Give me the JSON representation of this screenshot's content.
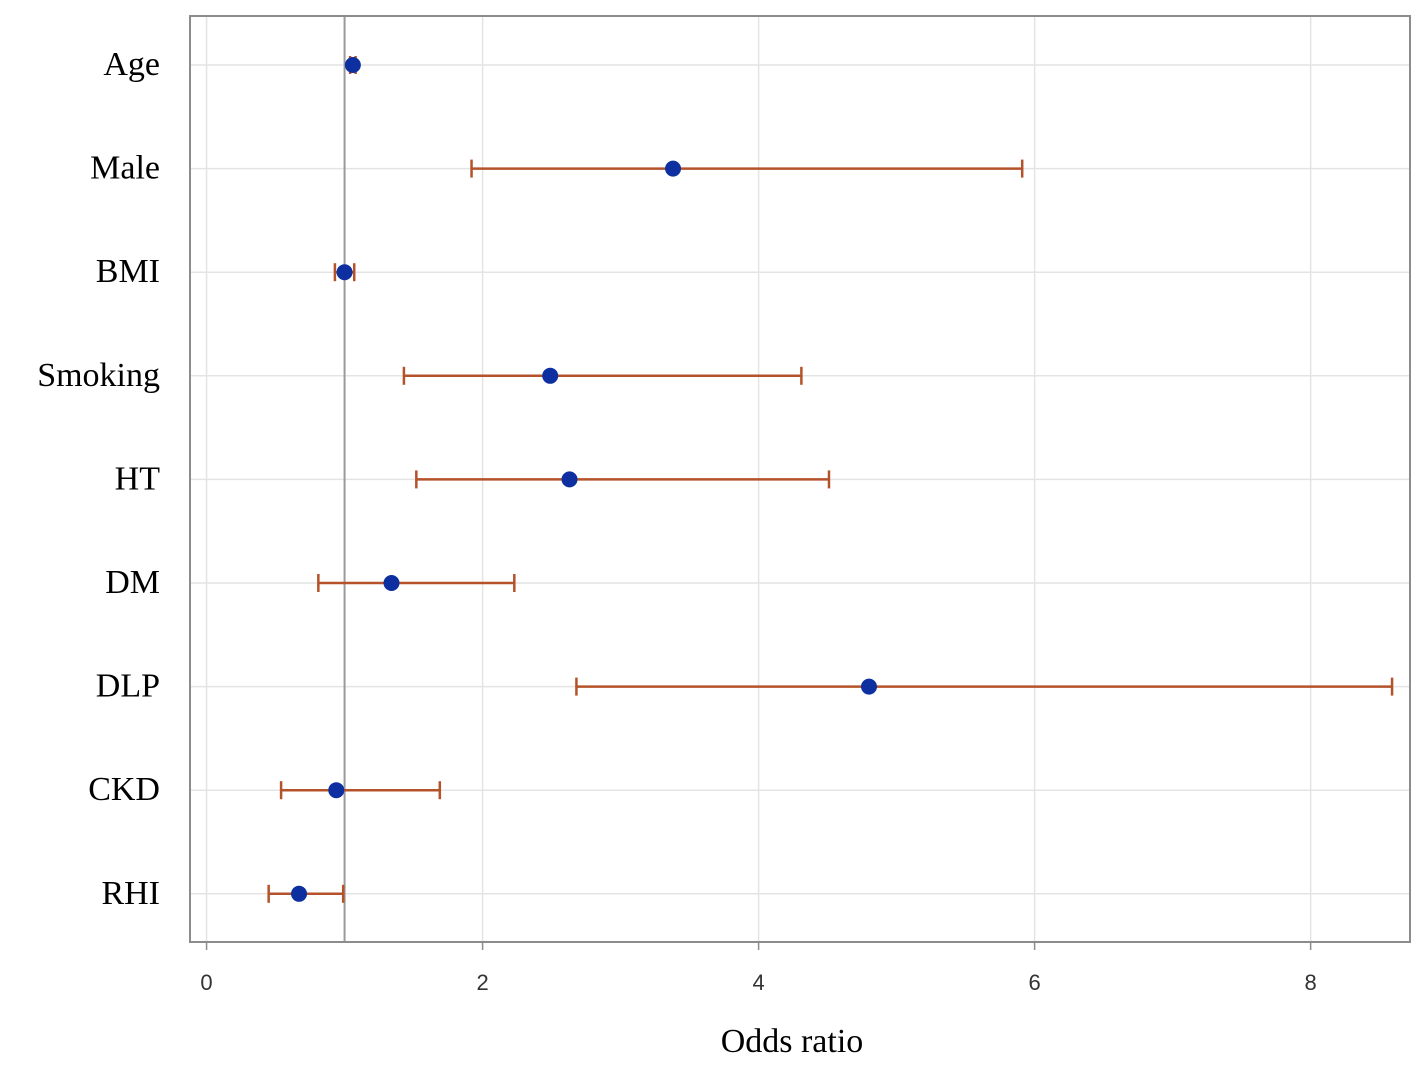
{
  "chart_data": {
    "type": "scatter",
    "subtype": "forest-plot",
    "title": "",
    "xlabel": "Odds ratio",
    "ylabel": "",
    "xlim": [
      -0.12,
      8.72
    ],
    "xticks": [
      0,
      2,
      4,
      6,
      8
    ],
    "reference_line": 1,
    "grid": true,
    "legend": "none",
    "categories": [
      "Age",
      "Male",
      "BMI",
      "Smoking",
      "HT",
      "DM",
      "DLP",
      "CKD",
      "RHI"
    ],
    "series": [
      {
        "estimates": [
          1.06,
          3.38,
          1.0,
          2.49,
          2.63,
          1.34,
          4.8,
          0.94,
          0.67
        ],
        "ci_lower": [
          1.04,
          1.92,
          0.93,
          1.43,
          1.52,
          0.81,
          2.68,
          0.54,
          0.45
        ],
        "ci_upper": [
          1.08,
          5.91,
          1.07,
          4.31,
          4.51,
          2.23,
          8.59,
          1.69,
          0.99
        ]
      }
    ],
    "colors": {
      "point": "#0d2fa0",
      "ci": "#b4522a",
      "reference": "#9a9a9a",
      "grid": "#e4e4e4",
      "frame": "#8c8c8c"
    }
  }
}
